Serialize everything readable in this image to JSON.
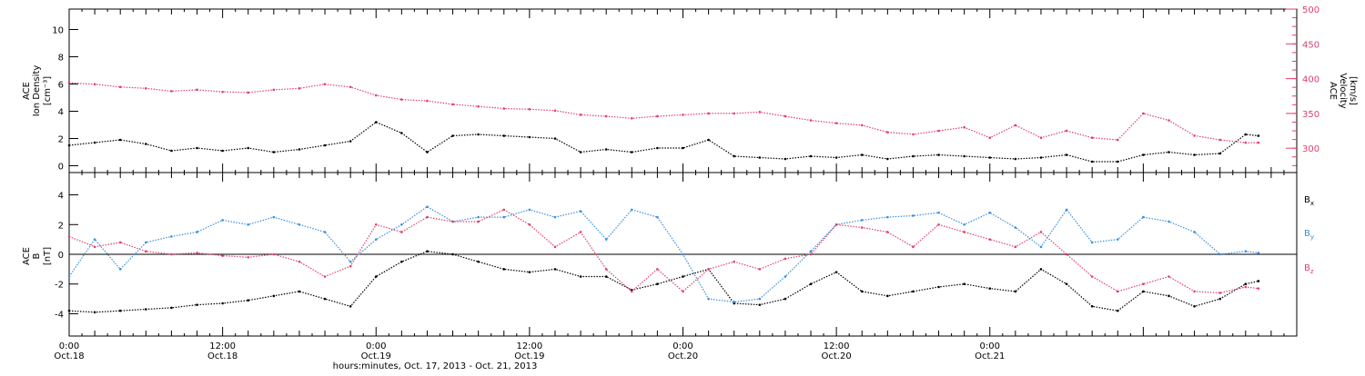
{
  "chart_data": [
    {
      "type": "scatter",
      "panel": "top",
      "ylabel_left": [
        "ACE",
        "Ion Density",
        "[cm⁻³]"
      ],
      "ylabel_right": [
        "ACE",
        "Velocity",
        "[km/s]"
      ],
      "ylim_left": [
        -0.5,
        11.5
      ],
      "ylim_right": [
        265,
        500
      ],
      "yticks_left": [
        "0",
        "2",
        "4",
        "6",
        "8",
        "10"
      ],
      "yticks_right": [
        "300",
        "350",
        "400",
        "450",
        "500"
      ],
      "series": [
        {
          "axis": "left",
          "color": "#000000",
          "x": [
            0,
            2,
            4,
            6,
            8,
            10,
            12,
            14,
            16,
            18,
            20,
            22,
            24,
            26,
            28,
            30,
            32,
            34,
            36,
            38,
            40,
            42,
            44,
            46,
            48,
            50,
            52,
            54,
            56,
            58,
            60,
            62,
            64,
            66,
            68,
            70,
            72,
            74,
            76,
            78,
            80,
            82,
            84,
            86,
            88,
            90,
            92,
            93
          ],
          "values": [
            1.5,
            1.7,
            1.9,
            1.6,
            1.1,
            1.3,
            1.1,
            1.3,
            1.0,
            1.2,
            1.5,
            1.8,
            3.2,
            2.4,
            1.0,
            2.2,
            2.3,
            2.2,
            2.1,
            2.0,
            1.0,
            1.2,
            1.0,
            1.3,
            1.3,
            1.9,
            0.7,
            0.6,
            0.5,
            0.7,
            0.6,
            0.8,
            0.5,
            0.7,
            0.8,
            0.7,
            0.6,
            0.5,
            0.6,
            0.8,
            0.3,
            0.3,
            0.8,
            1.0,
            0.8,
            0.9,
            2.3,
            2.2
          ]
        },
        {
          "axis": "right",
          "color": "#e0406a",
          "x": [
            0,
            2,
            4,
            6,
            8,
            10,
            12,
            14,
            16,
            18,
            20,
            22,
            24,
            26,
            28,
            30,
            32,
            34,
            36,
            38,
            40,
            42,
            44,
            46,
            48,
            50,
            52,
            54,
            56,
            58,
            60,
            62,
            64,
            66,
            68,
            70,
            72,
            74,
            76,
            78,
            80,
            82,
            84,
            86,
            88,
            90,
            92,
            93
          ],
          "values": [
            394,
            392,
            388,
            386,
            382,
            384,
            381,
            380,
            384,
            386,
            392,
            388,
            376,
            370,
            368,
            363,
            360,
            357,
            356,
            354,
            348,
            346,
            343,
            346,
            348,
            350,
            350,
            352,
            346,
            340,
            336,
            333,
            323,
            320,
            325,
            330,
            315,
            333,
            315,
            325,
            315,
            312,
            350,
            340,
            318,
            312,
            308,
            308
          ]
        }
      ]
    },
    {
      "type": "scatter",
      "panel": "bottom",
      "ylabel_left": [
        "ACE",
        "B",
        "[nT]"
      ],
      "ylim": [
        -5.5,
        5.5
      ],
      "yticks": [
        "-4",
        "-2",
        "0",
        "2",
        "4"
      ],
      "series": [
        {
          "name": "Bx",
          "label": "B",
          "subscript": "x",
          "color": "#000000",
          "x": [
            0,
            2,
            4,
            6,
            8,
            10,
            12,
            14,
            16,
            18,
            20,
            22,
            24,
            26,
            28,
            30,
            32,
            34,
            36,
            38,
            40,
            42,
            44,
            46,
            48,
            50,
            52,
            54,
            56,
            58,
            60,
            62,
            64,
            66,
            68,
            70,
            72,
            74,
            76,
            78,
            80,
            82,
            84,
            86,
            88,
            90,
            92,
            93
          ],
          "values": [
            -3.8,
            -3.9,
            -3.8,
            -3.7,
            -3.6,
            -3.4,
            -3.3,
            -3.1,
            -2.8,
            -2.5,
            -3.0,
            -3.5,
            -1.5,
            -0.5,
            0.2,
            0.0,
            -0.5,
            -1.0,
            -1.2,
            -1.0,
            -1.5,
            -1.5,
            -2.4,
            -2.0,
            -1.5,
            -1.0,
            -3.3,
            -3.4,
            -3.0,
            -2.0,
            -1.2,
            -2.5,
            -2.8,
            -2.5,
            -2.2,
            -2.0,
            -2.3,
            -2.5,
            -1.0,
            -2.0,
            -3.5,
            -3.8,
            -2.5,
            -2.8,
            -3.5,
            -3.0,
            -2.0,
            -1.8
          ]
        },
        {
          "name": "By",
          "label": "B",
          "subscript": "y",
          "color": "#3a8fe0",
          "x": [
            0,
            2,
            4,
            6,
            8,
            10,
            12,
            14,
            16,
            18,
            20,
            22,
            24,
            26,
            28,
            30,
            32,
            34,
            36,
            38,
            40,
            42,
            44,
            46,
            48,
            50,
            52,
            54,
            56,
            58,
            60,
            62,
            64,
            66,
            68,
            70,
            72,
            74,
            76,
            78,
            80,
            82,
            84,
            86,
            88,
            90,
            92,
            93
          ],
          "values": [
            -1.5,
            1.0,
            -1.0,
            0.8,
            1.2,
            1.5,
            2.3,
            2.0,
            2.5,
            2.0,
            1.5,
            -0.5,
            1.0,
            2.0,
            3.2,
            2.2,
            2.5,
            2.5,
            3.0,
            2.5,
            2.9,
            1.0,
            3.0,
            2.5,
            0.0,
            -3.0,
            -3.2,
            -3.0,
            -1.5,
            0.2,
            2.0,
            2.3,
            2.5,
            2.6,
            2.8,
            2.0,
            2.8,
            1.8,
            0.5,
            3.0,
            0.8,
            1.0,
            2.5,
            2.2,
            1.5,
            0.0,
            0.2,
            0.1
          ]
        },
        {
          "name": "Bz",
          "label": "B",
          "subscript": "z",
          "color": "#e0406a",
          "x": [
            0,
            2,
            4,
            6,
            8,
            10,
            12,
            14,
            16,
            18,
            20,
            22,
            24,
            26,
            28,
            30,
            32,
            34,
            36,
            38,
            40,
            42,
            44,
            46,
            48,
            50,
            52,
            54,
            56,
            58,
            60,
            62,
            64,
            66,
            68,
            70,
            72,
            74,
            76,
            78,
            80,
            82,
            84,
            86,
            88,
            90,
            92,
            93
          ],
          "values": [
            1.2,
            0.5,
            0.8,
            0.2,
            0.0,
            0.1,
            -0.1,
            -0.2,
            0.0,
            -0.5,
            -1.5,
            -0.8,
            2.0,
            1.5,
            2.5,
            2.2,
            2.2,
            3.0,
            2.0,
            0.5,
            1.5,
            -1.0,
            -2.5,
            -1.0,
            -2.5,
            -1.0,
            -0.5,
            -1.0,
            -0.3,
            0.0,
            2.0,
            1.8,
            1.5,
            0.5,
            2.0,
            1.5,
            1.0,
            0.5,
            1.5,
            0.0,
            -1.5,
            -2.5,
            -2.0,
            -1.5,
            -2.5,
            -2.6,
            -2.2,
            -2.3
          ]
        }
      ]
    }
  ],
  "xaxis": {
    "xlim": [
      0,
      96
    ],
    "major_ticks": [
      {
        "x": 0,
        "time": "0:00",
        "date": "Oct.18"
      },
      {
        "x": 12,
        "time": "12:00",
        "date": "Oct.18"
      },
      {
        "x": 24,
        "time": "0:00",
        "date": "Oct.19"
      },
      {
        "x": 36,
        "time": "12:00",
        "date": "Oct.19"
      },
      {
        "x": 48,
        "time": "0:00",
        "date": "Oct.20"
      },
      {
        "x": 60,
        "time": "12:00",
        "date": "Oct.20"
      },
      {
        "x": 72,
        "time": "0:00",
        "date": "Oct.21"
      }
    ],
    "xlabel": "hours:minutes, Oct. 17, 2013 - Oct. 21, 2013"
  }
}
